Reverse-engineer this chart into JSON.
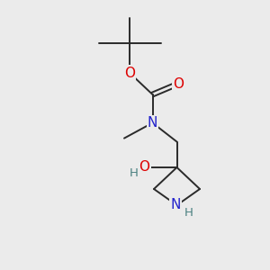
{
  "background_color": "#ebebeb",
  "bond_color": "#2a2a2a",
  "atom_colors": {
    "O": "#dd0000",
    "N": "#2222cc",
    "H": "#4a8080",
    "C": "#2a2a2a"
  },
  "font_size_atoms": 11,
  "font_size_H": 9.5,
  "line_width": 1.4
}
